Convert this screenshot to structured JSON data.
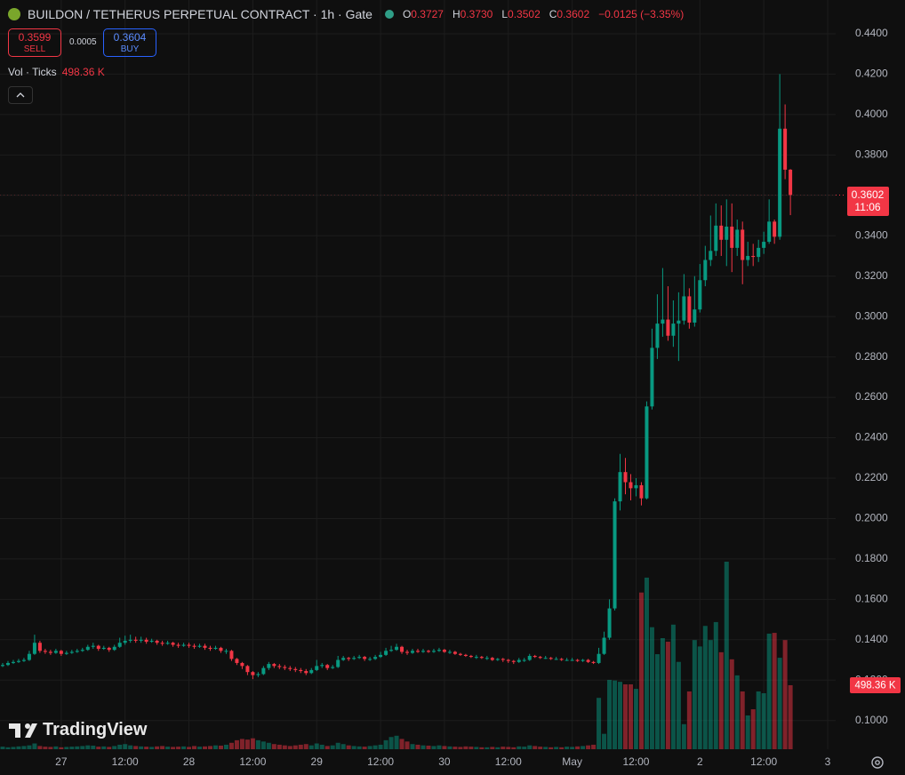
{
  "header": {
    "symbol": "BUILDON / TETHERUS PERPETUAL CONTRACT · 1h · Gate",
    "ohlc_labels": [
      "O",
      "H",
      "L",
      "C"
    ],
    "ohlc_values": [
      "0.3727",
      "0.3730",
      "0.3502",
      "0.3602"
    ],
    "change": "−0.0125 (−3.35%)"
  },
  "trade": {
    "sell_price": "0.3599",
    "sell": "SELL",
    "spread": "0.0005",
    "buy_price": "0.3604",
    "buy": "BUY"
  },
  "brand": "TradingView",
  "chart_data": {
    "type": "candlestick",
    "indicator": "Vol · Ticks",
    "volume_label": "498.36 K",
    "countdown": "11:06",
    "up_color": "#089981",
    "down_color": "#f23645",
    "grid": true,
    "xlim": [
      -0.5,
      156.5
    ],
    "ylim": [
      0.0858,
      0.4567
    ],
    "xticks": [
      {
        "value": 11,
        "label": "27"
      },
      {
        "value": 23,
        "label": "12:00"
      },
      {
        "value": 35,
        "label": "28"
      },
      {
        "value": 47,
        "label": "12:00"
      },
      {
        "value": 59,
        "label": "29"
      },
      {
        "value": 71,
        "label": "12:00"
      },
      {
        "value": 83,
        "label": "30"
      },
      {
        "value": 95,
        "label": "12:00"
      },
      {
        "value": 107,
        "label": "May"
      },
      {
        "value": 119,
        "label": "12:00"
      },
      {
        "value": 131,
        "label": "2"
      },
      {
        "value": 143,
        "label": "12:00"
      },
      {
        "value": 155,
        "label": "3"
      }
    ],
    "yticks": [
      {
        "value": 0.1,
        "label": "0.1000"
      },
      {
        "value": 0.12,
        "label": "0.1200"
      },
      {
        "value": 0.14,
        "label": "0.1400"
      },
      {
        "value": 0.16,
        "label": "0.1600"
      },
      {
        "value": 0.18,
        "label": "0.1800"
      },
      {
        "value": 0.2,
        "label": "0.2000"
      },
      {
        "value": 0.22,
        "label": "0.2200"
      },
      {
        "value": 0.24,
        "label": "0.2400"
      },
      {
        "value": 0.26,
        "label": "0.2600"
      },
      {
        "value": 0.28,
        "label": "0.2800"
      },
      {
        "value": 0.3,
        "label": "0.3000"
      },
      {
        "value": 0.32,
        "label": "0.3200"
      },
      {
        "value": 0.34,
        "label": "0.3400"
      },
      {
        "value": 0.36,
        "label": "0.3600"
      },
      {
        "value": 0.38,
        "label": "0.3800"
      },
      {
        "value": 0.4,
        "label": "0.4000"
      },
      {
        "value": 0.42,
        "label": "0.4200"
      },
      {
        "value": 0.44,
        "label": "0.4400"
      }
    ],
    "open": [
      0.127,
      0.1275,
      0.1285,
      0.129,
      0.1295,
      0.13,
      0.133,
      0.1385,
      0.1345,
      0.134,
      0.1335,
      0.1345,
      0.133,
      0.1335,
      0.134,
      0.1345,
      0.135,
      0.1365,
      0.137,
      0.1355,
      0.136,
      0.135,
      0.1365,
      0.1385,
      0.1395,
      0.14,
      0.1395,
      0.14,
      0.139,
      0.1395,
      0.1385,
      0.138,
      0.1385,
      0.1375,
      0.137,
      0.1375,
      0.137,
      0.1365,
      0.137,
      0.136,
      0.1355,
      0.136,
      0.1345,
      0.1345,
      0.1305,
      0.1285,
      0.127,
      0.124,
      0.1225,
      0.123,
      0.126,
      0.128,
      0.127,
      0.1265,
      0.126,
      0.1255,
      0.125,
      0.1245,
      0.1235,
      0.125,
      0.127,
      0.1275,
      0.126,
      0.1265,
      0.13,
      0.131,
      0.1305,
      0.131,
      0.1315,
      0.1305,
      0.1305,
      0.1315,
      0.1325,
      0.1345,
      0.135,
      0.1365,
      0.134,
      0.1335,
      0.1345,
      0.134,
      0.1345,
      0.134,
      0.1345,
      0.135,
      0.134,
      0.134,
      0.133,
      0.1325,
      0.132,
      0.1315,
      0.1315,
      0.131,
      0.131,
      0.13,
      0.1305,
      0.13,
      0.1295,
      0.129,
      0.13,
      0.13,
      0.132,
      0.1315,
      0.131,
      0.131,
      0.1305,
      0.1305,
      0.13,
      0.13,
      0.13,
      0.1295,
      0.13,
      0.129,
      0.1285,
      0.133,
      0.141,
      0.1555,
      0.2085,
      0.223,
      0.218,
      0.215,
      0.2165,
      0.21,
      0.2555,
      0.2845,
      0.2965,
      0.2985,
      0.2905,
      0.2965,
      0.298,
      0.31,
      0.297,
      0.3035,
      0.318,
      0.328,
      0.3325,
      0.345,
      0.338,
      0.3445,
      0.334,
      0.343,
      0.328,
      0.33,
      0.3295,
      0.334,
      0.337,
      0.347,
      0.3395,
      0.393,
      0.3727
    ],
    "high": [
      0.1285,
      0.1295,
      0.13,
      0.1305,
      0.131,
      0.1345,
      0.1425,
      0.1395,
      0.1355,
      0.135,
      0.1355,
      0.135,
      0.1345,
      0.135,
      0.1355,
      0.136,
      0.1375,
      0.1385,
      0.1375,
      0.137,
      0.1365,
      0.1375,
      0.141,
      0.142,
      0.1425,
      0.1415,
      0.1415,
      0.141,
      0.1405,
      0.14,
      0.1395,
      0.1395,
      0.139,
      0.1385,
      0.1385,
      0.1385,
      0.138,
      0.138,
      0.138,
      0.137,
      0.137,
      0.1365,
      0.1355,
      0.135,
      0.131,
      0.129,
      0.1275,
      0.1245,
      0.124,
      0.127,
      0.129,
      0.1285,
      0.128,
      0.1275,
      0.127,
      0.1265,
      0.126,
      0.1255,
      0.126,
      0.13,
      0.1285,
      0.128,
      0.1275,
      0.132,
      0.132,
      0.1315,
      0.132,
      0.1325,
      0.132,
      0.1315,
      0.1325,
      0.134,
      0.136,
      0.137,
      0.138,
      0.137,
      0.135,
      0.1355,
      0.1355,
      0.1355,
      0.135,
      0.1355,
      0.136,
      0.1355,
      0.135,
      0.1345,
      0.1335,
      0.133,
      0.1325,
      0.1325,
      0.132,
      0.132,
      0.1315,
      0.131,
      0.131,
      0.1305,
      0.13,
      0.131,
      0.131,
      0.133,
      0.1325,
      0.132,
      0.132,
      0.1315,
      0.1315,
      0.131,
      0.131,
      0.131,
      0.1305,
      0.1305,
      0.1305,
      0.1295,
      0.136,
      0.144,
      0.16,
      0.21,
      0.232,
      0.23,
      0.222,
      0.22,
      0.218,
      0.258,
      0.294,
      0.311,
      0.324,
      0.315,
      0.308,
      0.312,
      0.321,
      0.314,
      0.32,
      0.326,
      0.335,
      0.35,
      0.356,
      0.355,
      0.358,
      0.356,
      0.348,
      0.347,
      0.337,
      0.336,
      0.338,
      0.342,
      0.358,
      0.348,
      0.42,
      0.405,
      0.373
    ],
    "low": [
      0.1265,
      0.127,
      0.128,
      0.1285,
      0.129,
      0.1295,
      0.1325,
      0.1335,
      0.133,
      0.1325,
      0.133,
      0.132,
      0.1325,
      0.133,
      0.1335,
      0.134,
      0.1345,
      0.1355,
      0.1345,
      0.135,
      0.134,
      0.1345,
      0.136,
      0.1375,
      0.1385,
      0.1385,
      0.1385,
      0.138,
      0.1385,
      0.1375,
      0.137,
      0.1375,
      0.1365,
      0.136,
      0.1365,
      0.136,
      0.1355,
      0.136,
      0.135,
      0.1345,
      0.135,
      0.1335,
      0.133,
      0.1295,
      0.1275,
      0.1255,
      0.1225,
      0.1205,
      0.1215,
      0.1225,
      0.125,
      0.126,
      0.1255,
      0.125,
      0.1245,
      0.124,
      0.1235,
      0.1225,
      0.123,
      0.1245,
      0.126,
      0.125,
      0.1255,
      0.126,
      0.1295,
      0.1295,
      0.13,
      0.1305,
      0.1295,
      0.1295,
      0.13,
      0.131,
      0.132,
      0.134,
      0.1345,
      0.133,
      0.1325,
      0.133,
      0.1335,
      0.1335,
      0.1335,
      0.1335,
      0.134,
      0.1335,
      0.133,
      0.1325,
      0.132,
      0.1315,
      0.131,
      0.1305,
      0.1305,
      0.13,
      0.1295,
      0.1295,
      0.129,
      0.1285,
      0.128,
      0.1285,
      0.129,
      0.1295,
      0.131,
      0.1305,
      0.1305,
      0.13,
      0.13,
      0.1295,
      0.1295,
      0.1295,
      0.129,
      0.129,
      0.1285,
      0.128,
      0.128,
      0.1325,
      0.14,
      0.1545,
      0.204,
      0.212,
      0.209,
      0.211,
      0.2065,
      0.2095,
      0.254,
      0.279,
      0.29,
      0.288,
      0.285,
      0.278,
      0.296,
      0.294,
      0.295,
      0.302,
      0.315,
      0.325,
      0.33,
      0.33,
      0.325,
      0.322,
      0.33,
      0.316,
      0.325,
      0.325,
      0.327,
      0.331,
      0.336,
      0.336,
      0.338,
      0.368,
      0.3502
    ],
    "close": [
      0.1275,
      0.1285,
      0.129,
      0.1295,
      0.13,
      0.133,
      0.1385,
      0.1345,
      0.134,
      0.1335,
      0.1345,
      0.133,
      0.1335,
      0.134,
      0.1345,
      0.135,
      0.1365,
      0.137,
      0.1355,
      0.136,
      0.135,
      0.1365,
      0.1385,
      0.1395,
      0.14,
      0.1395,
      0.14,
      0.139,
      0.1395,
      0.1385,
      0.138,
      0.1385,
      0.1375,
      0.137,
      0.1375,
      0.137,
      0.1365,
      0.137,
      0.136,
      0.1355,
      0.136,
      0.1345,
      0.1345,
      0.1305,
      0.1285,
      0.127,
      0.124,
      0.1225,
      0.123,
      0.126,
      0.128,
      0.127,
      0.1265,
      0.126,
      0.1255,
      0.125,
      0.1245,
      0.1235,
      0.125,
      0.127,
      0.1275,
      0.126,
      0.1265,
      0.13,
      0.131,
      0.1305,
      0.131,
      0.1315,
      0.1305,
      0.1305,
      0.1315,
      0.1325,
      0.1345,
      0.135,
      0.1365,
      0.134,
      0.1335,
      0.1345,
      0.134,
      0.1345,
      0.134,
      0.1345,
      0.135,
      0.134,
      0.134,
      0.133,
      0.1325,
      0.132,
      0.1315,
      0.1315,
      0.131,
      0.131,
      0.13,
      0.1305,
      0.13,
      0.1295,
      0.129,
      0.13,
      0.13,
      0.132,
      0.1315,
      0.131,
      0.131,
      0.1305,
      0.1305,
      0.13,
      0.13,
      0.13,
      0.1295,
      0.13,
      0.129,
      0.1285,
      0.133,
      0.141,
      0.1555,
      0.2085,
      0.223,
      0.218,
      0.215,
      0.2165,
      0.21,
      0.2555,
      0.2845,
      0.2965,
      0.2985,
      0.2905,
      0.2965,
      0.298,
      0.31,
      0.297,
      0.3035,
      0.318,
      0.328,
      0.3325,
      0.345,
      0.338,
      0.3445,
      0.334,
      0.343,
      0.328,
      0.33,
      0.3295,
      0.334,
      0.337,
      0.347,
      0.3395,
      0.393,
      0.3727,
      0.3602
    ],
    "volume": [
      20,
      15,
      18,
      22,
      25,
      30,
      45,
      25,
      20,
      18,
      22,
      15,
      18,
      20,
      22,
      25,
      30,
      28,
      20,
      22,
      18,
      25,
      35,
      40,
      30,
      25,
      22,
      20,
      18,
      22,
      25,
      20,
      18,
      20,
      22,
      18,
      25,
      20,
      22,
      25,
      30,
      28,
      35,
      50,
      70,
      80,
      75,
      85,
      70,
      60,
      50,
      40,
      35,
      30,
      25,
      30,
      35,
      40,
      30,
      45,
      35,
      25,
      30,
      50,
      40,
      30,
      25,
      22,
      20,
      25,
      30,
      35,
      70,
      95,
      105,
      80,
      60,
      40,
      35,
      30,
      28,
      25,
      30,
      25,
      22,
      20,
      18,
      22,
      20,
      18,
      15,
      15,
      18,
      15,
      20,
      18,
      15,
      22,
      20,
      30,
      25,
      20,
      18,
      15,
      18,
      15,
      20,
      18,
      22,
      25,
      30,
      35,
      400,
      120,
      540,
      535,
      525,
      505,
      505,
      470,
      1220,
      1336,
      950,
      740,
      865,
      837,
      970,
      680,
      195,
      450,
      850,
      800,
      960,
      850,
      990,
      755,
      1460,
      700,
      575,
      450,
      263,
      311,
      450,
      436,
      900,
      906,
      712,
      850,
      498.36
    ]
  }
}
